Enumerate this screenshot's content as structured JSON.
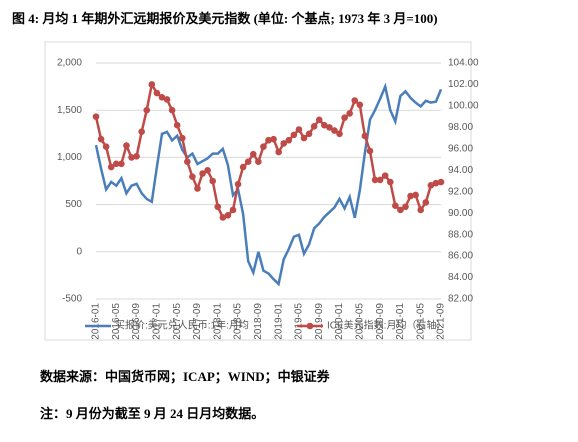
{
  "chart_data": {
    "type": "line",
    "title": "图 4: 月均 1 年期外汇远期报价及美元指数 (单位: 个基点; 1973 年 3 月=100)",
    "categories": [
      "2016-01",
      null,
      null,
      null,
      "2016-05",
      null,
      null,
      null,
      "2016-09",
      null,
      null,
      null,
      "2017-01",
      null,
      null,
      null,
      "2017-05",
      null,
      null,
      null,
      "2017-09",
      null,
      null,
      null,
      "2018-01",
      null,
      null,
      null,
      "2018-05",
      null,
      null,
      null,
      "2018-09",
      null,
      null,
      null,
      "2019-01",
      null,
      null,
      null,
      "2019-05",
      null,
      null,
      null,
      "2019-09",
      null,
      null,
      null,
      "2020-01",
      null,
      null,
      null,
      "2020-05",
      null,
      null,
      null,
      "2020-09",
      null,
      null,
      null,
      "2021-01",
      null,
      null,
      null,
      "2021-05",
      null,
      null,
      null,
      "2021-09"
    ],
    "series": [
      {
        "name": "买报价:美元兑人民币:1年:月均",
        "color": "#4a7ebb",
        "axis": "y",
        "values": [
          1130,
          880,
          660,
          740,
          700,
          780,
          620,
          700,
          720,
          620,
          560,
          530,
          900,
          1250,
          1270,
          1180,
          1230,
          1080,
          1000,
          1040,
          930,
          960,
          990,
          1040,
          1040,
          1090,
          920,
          600,
          660,
          400,
          -100,
          -220,
          0,
          -200,
          -230,
          -290,
          -340,
          -80,
          30,
          160,
          180,
          -20,
          80,
          250,
          300,
          370,
          420,
          470,
          560,
          460,
          580,
          360,
          650,
          1050,
          1400,
          1500,
          1620,
          1750,
          1500,
          1380,
          1650,
          1700,
          1630,
          1580,
          1540,
          1600,
          1580,
          1590,
          1720
        ]
      },
      {
        "name": "ICE美元指数:月均（右轴）",
        "color": "#be4b48",
        "axis": "y2",
        "values": [
          99.0,
          96.9,
          96.2,
          94.3,
          94.6,
          94.6,
          96.3,
          95.2,
          95.3,
          97.6,
          99.6,
          102.0,
          101.2,
          100.8,
          100.6,
          99.6,
          98.2,
          97.0,
          94.8,
          93.4,
          92.3,
          93.7,
          94.0,
          93.0,
          90.6,
          89.6,
          89.8,
          90.3,
          92.7,
          94.3,
          94.8,
          95.5,
          94.8,
          96.2,
          96.8,
          96.9,
          95.7,
          96.5,
          96.8,
          97.3,
          97.8,
          97.0,
          97.4,
          98.1,
          98.7,
          98.2,
          98.0,
          97.7,
          97.4,
          98.9,
          99.3,
          100.5,
          100.1,
          97.2,
          95.8,
          93.1,
          93.1,
          93.5,
          92.9,
          90.7,
          90.3,
          90.6,
          91.6,
          91.7,
          90.3,
          91.0,
          92.6,
          92.8,
          92.9
        ]
      }
    ],
    "ylim": [
      -500,
      2000
    ],
    "yticks": [
      -500,
      0,
      {
        "value": 500,
        "label": "500"
      },
      {
        "value": 1000,
        "label": "1,000"
      },
      {
        "value": 1500,
        "label": "1,500"
      },
      {
        "value": 2000,
        "label": "2,000"
      }
    ],
    "y2lim": [
      82,
      104
    ],
    "y2ticks": [
      {
        "value": 82,
        "label": "82.00"
      },
      {
        "value": 84,
        "label": "84.00"
      },
      {
        "value": 86,
        "label": "86.00"
      },
      {
        "value": 88,
        "label": "88.00"
      },
      {
        "value": 90,
        "label": "90.00"
      },
      {
        "value": 92,
        "label": "92.00"
      },
      {
        "value": 94,
        "label": "94.00"
      },
      {
        "value": 96,
        "label": "96.00"
      },
      {
        "value": 98,
        "label": "98.00"
      },
      {
        "value": 100,
        "label": "100.00"
      },
      {
        "value": 102,
        "label": "102.00"
      },
      {
        "value": 104,
        "label": "104.00"
      }
    ],
    "grid": true,
    "legend": "bottom"
  },
  "source": "数据来源：中国货币网；ICAP；WIND；中银证券",
  "note": "注：9 月份为截至 9 月 24 日月均数据。"
}
